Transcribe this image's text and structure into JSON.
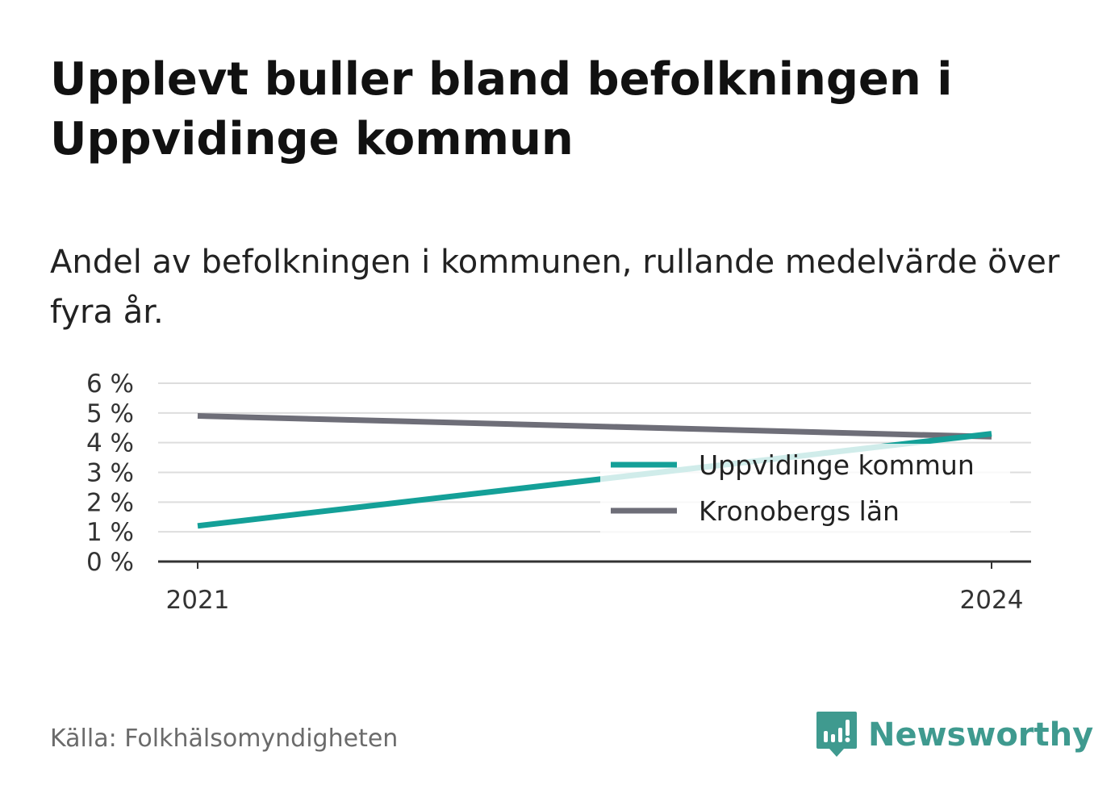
{
  "title": "Upplevt buller bland befolkningen i Uppvidinge kommun",
  "subtitle": "Andel av befolkningen i kommunen, rullande medelvärde över fyra år.",
  "source": "Källa: Folkhälsomyndigheten",
  "brand": {
    "name": "Newsworthy",
    "icon": "newsworthy-logo-icon"
  },
  "colors": {
    "series_1": "#14a098",
    "series_2": "#6e6e78",
    "grid": "#dddddd",
    "axis": "#333333"
  },
  "chart_data": {
    "type": "line",
    "x": [
      "2021",
      "2024"
    ],
    "series": [
      {
        "name": "Uppvidinge kommun",
        "values": [
          1.2,
          4.3
        ],
        "color": "#14a098"
      },
      {
        "name": "Kronobergs län",
        "values": [
          4.9,
          4.2
        ],
        "color": "#6e6e78"
      }
    ],
    "ylim": [
      0,
      6
    ],
    "yticks": [
      0,
      1,
      2,
      3,
      4,
      5,
      6
    ],
    "ytick_labels": [
      "0 %",
      "1 %",
      "2 %",
      "3 %",
      "4 %",
      "5 %",
      "6 %"
    ],
    "xtick_labels": [
      "2021",
      "2024"
    ],
    "grid": true,
    "legend_position": "right"
  }
}
